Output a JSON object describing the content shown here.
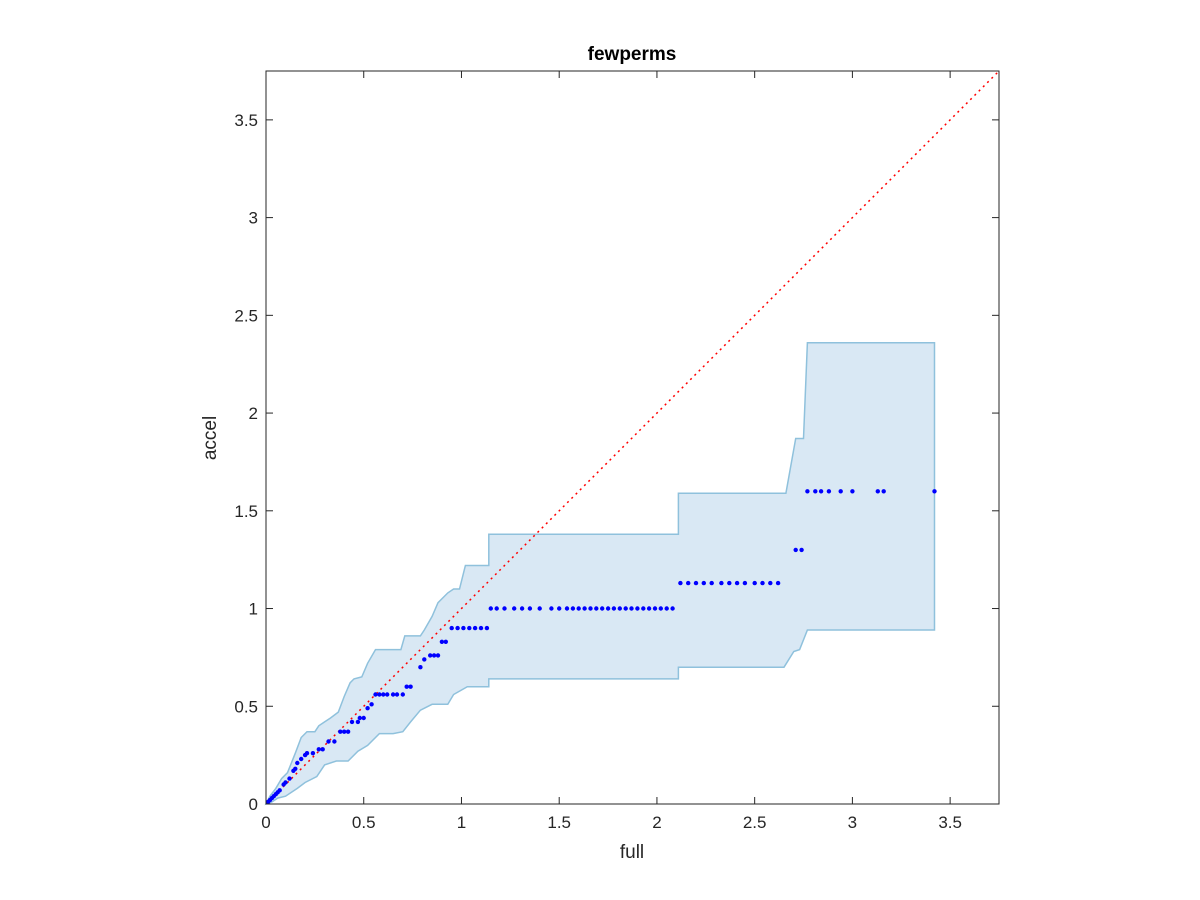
{
  "chart_data": {
    "type": "scatter",
    "title": "fewperms",
    "xlabel": "full",
    "ylabel": "accel",
    "xlim": [
      0,
      3.75
    ],
    "ylim": [
      0,
      3.75
    ],
    "xticks": [
      0,
      0.5,
      1,
      1.5,
      2,
      2.5,
      3,
      3.5
    ],
    "yticks": [
      0,
      0.5,
      1,
      1.5,
      2,
      2.5,
      3,
      3.5
    ],
    "xtick_labels": [
      "0",
      "0.5",
      "1",
      "1.5",
      "2",
      "2.5",
      "3",
      "3.5"
    ],
    "ytick_labels": [
      "0",
      "0.5",
      "1",
      "1.5",
      "2",
      "2.5",
      "3",
      "3.5"
    ],
    "grid": false,
    "colors": {
      "points": "#0000ff",
      "band_fill": "#d9e8f4",
      "band_edge": "#8fc1dc",
      "reference": "#ff0000",
      "axes": "#262626"
    },
    "reference_line": {
      "x": [
        0,
        3.75
      ],
      "y": [
        0,
        3.75
      ]
    },
    "band_upper": [
      [
        0.0,
        0.0
      ],
      [
        0.02,
        0.04
      ],
      [
        0.05,
        0.08
      ],
      [
        0.08,
        0.13
      ],
      [
        0.11,
        0.16
      ],
      [
        0.15,
        0.26
      ],
      [
        0.18,
        0.34
      ],
      [
        0.21,
        0.37
      ],
      [
        0.25,
        0.37
      ],
      [
        0.27,
        0.4
      ],
      [
        0.3,
        0.42
      ],
      [
        0.33,
        0.44
      ],
      [
        0.37,
        0.47
      ],
      [
        0.4,
        0.55
      ],
      [
        0.43,
        0.62
      ],
      [
        0.45,
        0.64
      ],
      [
        0.49,
        0.65
      ],
      [
        0.52,
        0.72
      ],
      [
        0.56,
        0.79
      ],
      [
        0.69,
        0.79
      ],
      [
        0.71,
        0.86
      ],
      [
        0.79,
        0.86
      ],
      [
        0.81,
        0.89
      ],
      [
        0.85,
        0.96
      ],
      [
        0.88,
        1.03
      ],
      [
        0.93,
        1.08
      ],
      [
        0.96,
        1.1
      ],
      [
        0.99,
        1.1
      ],
      [
        1.02,
        1.22
      ],
      [
        1.14,
        1.22
      ],
      [
        1.14,
        1.38
      ],
      [
        2.11,
        1.38
      ],
      [
        2.11,
        1.59
      ],
      [
        2.66,
        1.59
      ],
      [
        2.71,
        1.87
      ],
      [
        2.75,
        1.87
      ],
      [
        2.77,
        2.36
      ],
      [
        3.42,
        2.36
      ]
    ],
    "band_lower": [
      [
        3.42,
        0.89
      ],
      [
        2.77,
        0.89
      ],
      [
        2.73,
        0.79
      ],
      [
        2.7,
        0.78
      ],
      [
        2.65,
        0.7
      ],
      [
        2.11,
        0.7
      ],
      [
        2.11,
        0.64
      ],
      [
        1.14,
        0.64
      ],
      [
        1.14,
        0.6
      ],
      [
        1.03,
        0.6
      ],
      [
        0.96,
        0.56
      ],
      [
        0.93,
        0.51
      ],
      [
        0.85,
        0.51
      ],
      [
        0.79,
        0.48
      ],
      [
        0.74,
        0.42
      ],
      [
        0.7,
        0.37
      ],
      [
        0.65,
        0.36
      ],
      [
        0.58,
        0.36
      ],
      [
        0.52,
        0.3
      ],
      [
        0.47,
        0.27
      ],
      [
        0.42,
        0.22
      ],
      [
        0.36,
        0.22
      ],
      [
        0.3,
        0.2
      ],
      [
        0.26,
        0.14
      ],
      [
        0.2,
        0.11
      ],
      [
        0.16,
        0.08
      ],
      [
        0.1,
        0.04
      ],
      [
        0.06,
        0.03
      ],
      [
        0.03,
        0.01
      ],
      [
        0.0,
        0.0
      ]
    ],
    "points": [
      [
        0.01,
        0.01
      ],
      [
        0.02,
        0.02
      ],
      [
        0.03,
        0.03
      ],
      [
        0.04,
        0.04
      ],
      [
        0.05,
        0.05
      ],
      [
        0.06,
        0.06
      ],
      [
        0.07,
        0.07
      ],
      [
        0.09,
        0.1
      ],
      [
        0.1,
        0.11
      ],
      [
        0.12,
        0.13
      ],
      [
        0.14,
        0.17
      ],
      [
        0.15,
        0.18
      ],
      [
        0.16,
        0.21
      ],
      [
        0.18,
        0.23
      ],
      [
        0.2,
        0.25
      ],
      [
        0.21,
        0.26
      ],
      [
        0.24,
        0.26
      ],
      [
        0.27,
        0.28
      ],
      [
        0.29,
        0.28
      ],
      [
        0.32,
        0.32
      ],
      [
        0.35,
        0.32
      ],
      [
        0.38,
        0.37
      ],
      [
        0.4,
        0.37
      ],
      [
        0.42,
        0.37
      ],
      [
        0.44,
        0.42
      ],
      [
        0.47,
        0.42
      ],
      [
        0.48,
        0.44
      ],
      [
        0.5,
        0.44
      ],
      [
        0.52,
        0.49
      ],
      [
        0.54,
        0.51
      ],
      [
        0.56,
        0.56
      ],
      [
        0.58,
        0.56
      ],
      [
        0.6,
        0.56
      ],
      [
        0.62,
        0.56
      ],
      [
        0.65,
        0.56
      ],
      [
        0.67,
        0.56
      ],
      [
        0.7,
        0.56
      ],
      [
        0.72,
        0.6
      ],
      [
        0.74,
        0.6
      ],
      [
        0.79,
        0.7
      ],
      [
        0.81,
        0.74
      ],
      [
        0.84,
        0.76
      ],
      [
        0.86,
        0.76
      ],
      [
        0.88,
        0.76
      ],
      [
        0.9,
        0.83
      ],
      [
        0.92,
        0.83
      ],
      [
        0.95,
        0.9
      ],
      [
        0.98,
        0.9
      ],
      [
        1.01,
        0.9
      ],
      [
        1.04,
        0.9
      ],
      [
        1.07,
        0.9
      ],
      [
        1.1,
        0.9
      ],
      [
        1.13,
        0.9
      ],
      [
        1.15,
        1.0
      ],
      [
        1.18,
        1.0
      ],
      [
        1.22,
        1.0
      ],
      [
        1.27,
        1.0
      ],
      [
        1.31,
        1.0
      ],
      [
        1.35,
        1.0
      ],
      [
        1.4,
        1.0
      ],
      [
        1.46,
        1.0
      ],
      [
        1.5,
        1.0
      ],
      [
        1.54,
        1.0
      ],
      [
        1.57,
        1.0
      ],
      [
        1.6,
        1.0
      ],
      [
        1.63,
        1.0
      ],
      [
        1.66,
        1.0
      ],
      [
        1.69,
        1.0
      ],
      [
        1.72,
        1.0
      ],
      [
        1.75,
        1.0
      ],
      [
        1.78,
        1.0
      ],
      [
        1.81,
        1.0
      ],
      [
        1.84,
        1.0
      ],
      [
        1.87,
        1.0
      ],
      [
        1.9,
        1.0
      ],
      [
        1.93,
        1.0
      ],
      [
        1.96,
        1.0
      ],
      [
        1.99,
        1.0
      ],
      [
        2.02,
        1.0
      ],
      [
        2.05,
        1.0
      ],
      [
        2.08,
        1.0
      ],
      [
        2.12,
        1.13
      ],
      [
        2.16,
        1.13
      ],
      [
        2.2,
        1.13
      ],
      [
        2.24,
        1.13
      ],
      [
        2.28,
        1.13
      ],
      [
        2.33,
        1.13
      ],
      [
        2.37,
        1.13
      ],
      [
        2.41,
        1.13
      ],
      [
        2.45,
        1.13
      ],
      [
        2.5,
        1.13
      ],
      [
        2.54,
        1.13
      ],
      [
        2.58,
        1.13
      ],
      [
        2.62,
        1.13
      ],
      [
        2.71,
        1.3
      ],
      [
        2.74,
        1.3
      ],
      [
        2.77,
        1.6
      ],
      [
        2.81,
        1.6
      ],
      [
        2.84,
        1.6
      ],
      [
        2.88,
        1.6
      ],
      [
        2.94,
        1.6
      ],
      [
        3.0,
        1.6
      ],
      [
        3.13,
        1.6
      ],
      [
        3.16,
        1.6
      ],
      [
        3.42,
        1.6
      ]
    ]
  }
}
